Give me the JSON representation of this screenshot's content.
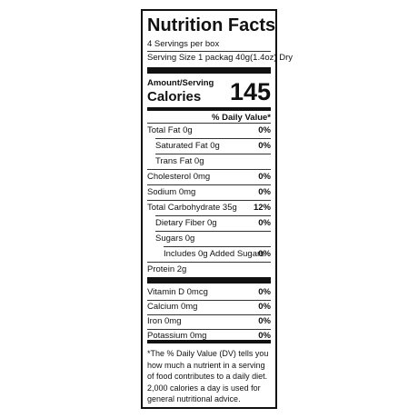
{
  "header": {
    "title": "Nutrition Facts",
    "servings": "4 Servings per box",
    "serving_size": "Serving Size 1 packag 40g(1.4oz) Dry"
  },
  "calories": {
    "amount_label": "Amount/Serving",
    "label": "Calories",
    "value": "145"
  },
  "dv_header": "% Daily Value*",
  "nutrients": [
    {
      "label": "Total Fat 0g",
      "dv": "0%",
      "indent": 0
    },
    {
      "label": "Saturated Fat 0g",
      "dv": "0%",
      "indent": 1
    },
    {
      "label": "Trans Fat 0g",
      "indent": 1
    },
    {
      "label": "Cholesterol 0mg",
      "dv": "0%",
      "indent": 0
    },
    {
      "label": "Sodium 0mg",
      "dv": "0%",
      "indent": 0
    },
    {
      "label": "Total Carbohydrate 35g",
      "dv": "12%",
      "indent": 0
    },
    {
      "label": "Dietary Fiber 0g",
      "dv": "0%",
      "indent": 1
    },
    {
      "label": "Sugars 0g",
      "indent": 1
    },
    {
      "label": "Includes 0g Added Sugars",
      "dv": "0%",
      "indent": 2
    },
    {
      "label": "Protein 2g",
      "indent": 0
    }
  ],
  "vitamins": [
    {
      "label": "Vitamin D 0mcg",
      "dv": "0%"
    },
    {
      "label": "Calcium 0mg",
      "dv": "0%"
    },
    {
      "label": "Iron 0mg",
      "dv": "0%"
    },
    {
      "label": "Potassium 0mg",
      "dv": "0%"
    }
  ],
  "footnote": [
    "*The % Daily Value (DV) tells you",
    "how much a nutrient in a serving",
    "of food contributes to a daily diet.",
    "2,000 calories a day is used for",
    "general nutritional advice."
  ]
}
